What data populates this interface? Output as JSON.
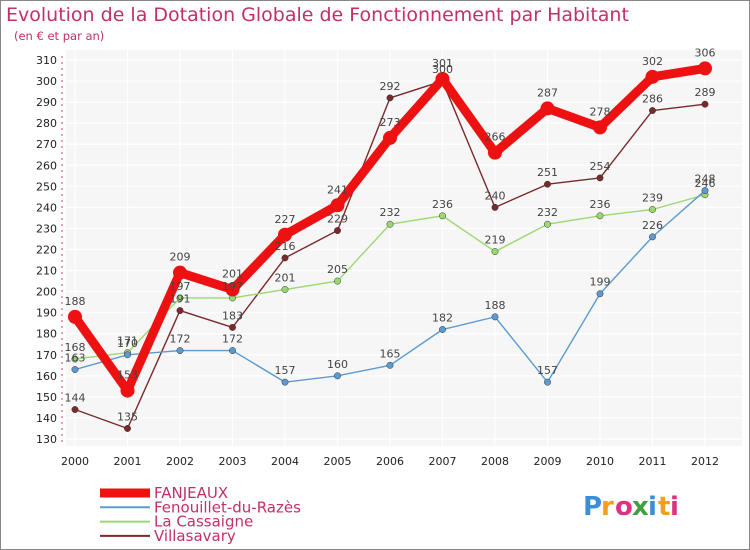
{
  "brand": {
    "letters": [
      "P",
      "r",
      "o",
      "x",
      "i",
      "t",
      "i"
    ],
    "colors": [
      "#3a8fd8",
      "#f0a020",
      "#e03080",
      "#40a040",
      "#3a8fd8",
      "#f0a020",
      "#e03080"
    ]
  },
  "chart_data": {
    "type": "line",
    "title": "Evolution de la Dotation Globale de Fonctionnement par Habitant",
    "subtitle": "(en € et par an)",
    "xlabel": "",
    "ylabel": "",
    "x": [
      "2000",
      "2001",
      "2002",
      "2003",
      "2004",
      "2005",
      "2006",
      "2007",
      "2008",
      "2009",
      "2010",
      "2011",
      "2012"
    ],
    "yticks": [
      130,
      140,
      150,
      160,
      170,
      180,
      190,
      200,
      210,
      220,
      230,
      240,
      250,
      260,
      270,
      280,
      290,
      300,
      310
    ],
    "ylim": [
      130,
      310
    ],
    "grid": true,
    "legend_position": "bottom-left",
    "series": [
      {
        "name": "Villasavary",
        "color": "#7a2a2a",
        "values": [
          144,
          135,
          191,
          183,
          216,
          229,
          292,
          300,
          240,
          251,
          254,
          286,
          289
        ]
      },
      {
        "name": "La Cassaigne",
        "color": "#9ad870",
        "values": [
          168,
          171,
          197,
          197,
          201,
          205,
          232,
          236,
          219,
          232,
          236,
          239,
          246
        ]
      },
      {
        "name": "Fenouillet-du-Razès",
        "color": "#5c9ad0",
        "values": [
          163,
          170,
          172,
          172,
          157,
          160,
          165,
          182,
          188,
          157,
          199,
          226,
          248
        ]
      },
      {
        "name": "FANJEAUX",
        "color": "#ee1111",
        "values": [
          188,
          153,
          209,
          201,
          227,
          241,
          273,
          301,
          266,
          287,
          278,
          302,
          306
        ]
      }
    ],
    "legend_order": [
      "FANJEAUX",
      "Fenouillet-du-Razès",
      "La Cassaigne",
      "Villasavary"
    ]
  }
}
